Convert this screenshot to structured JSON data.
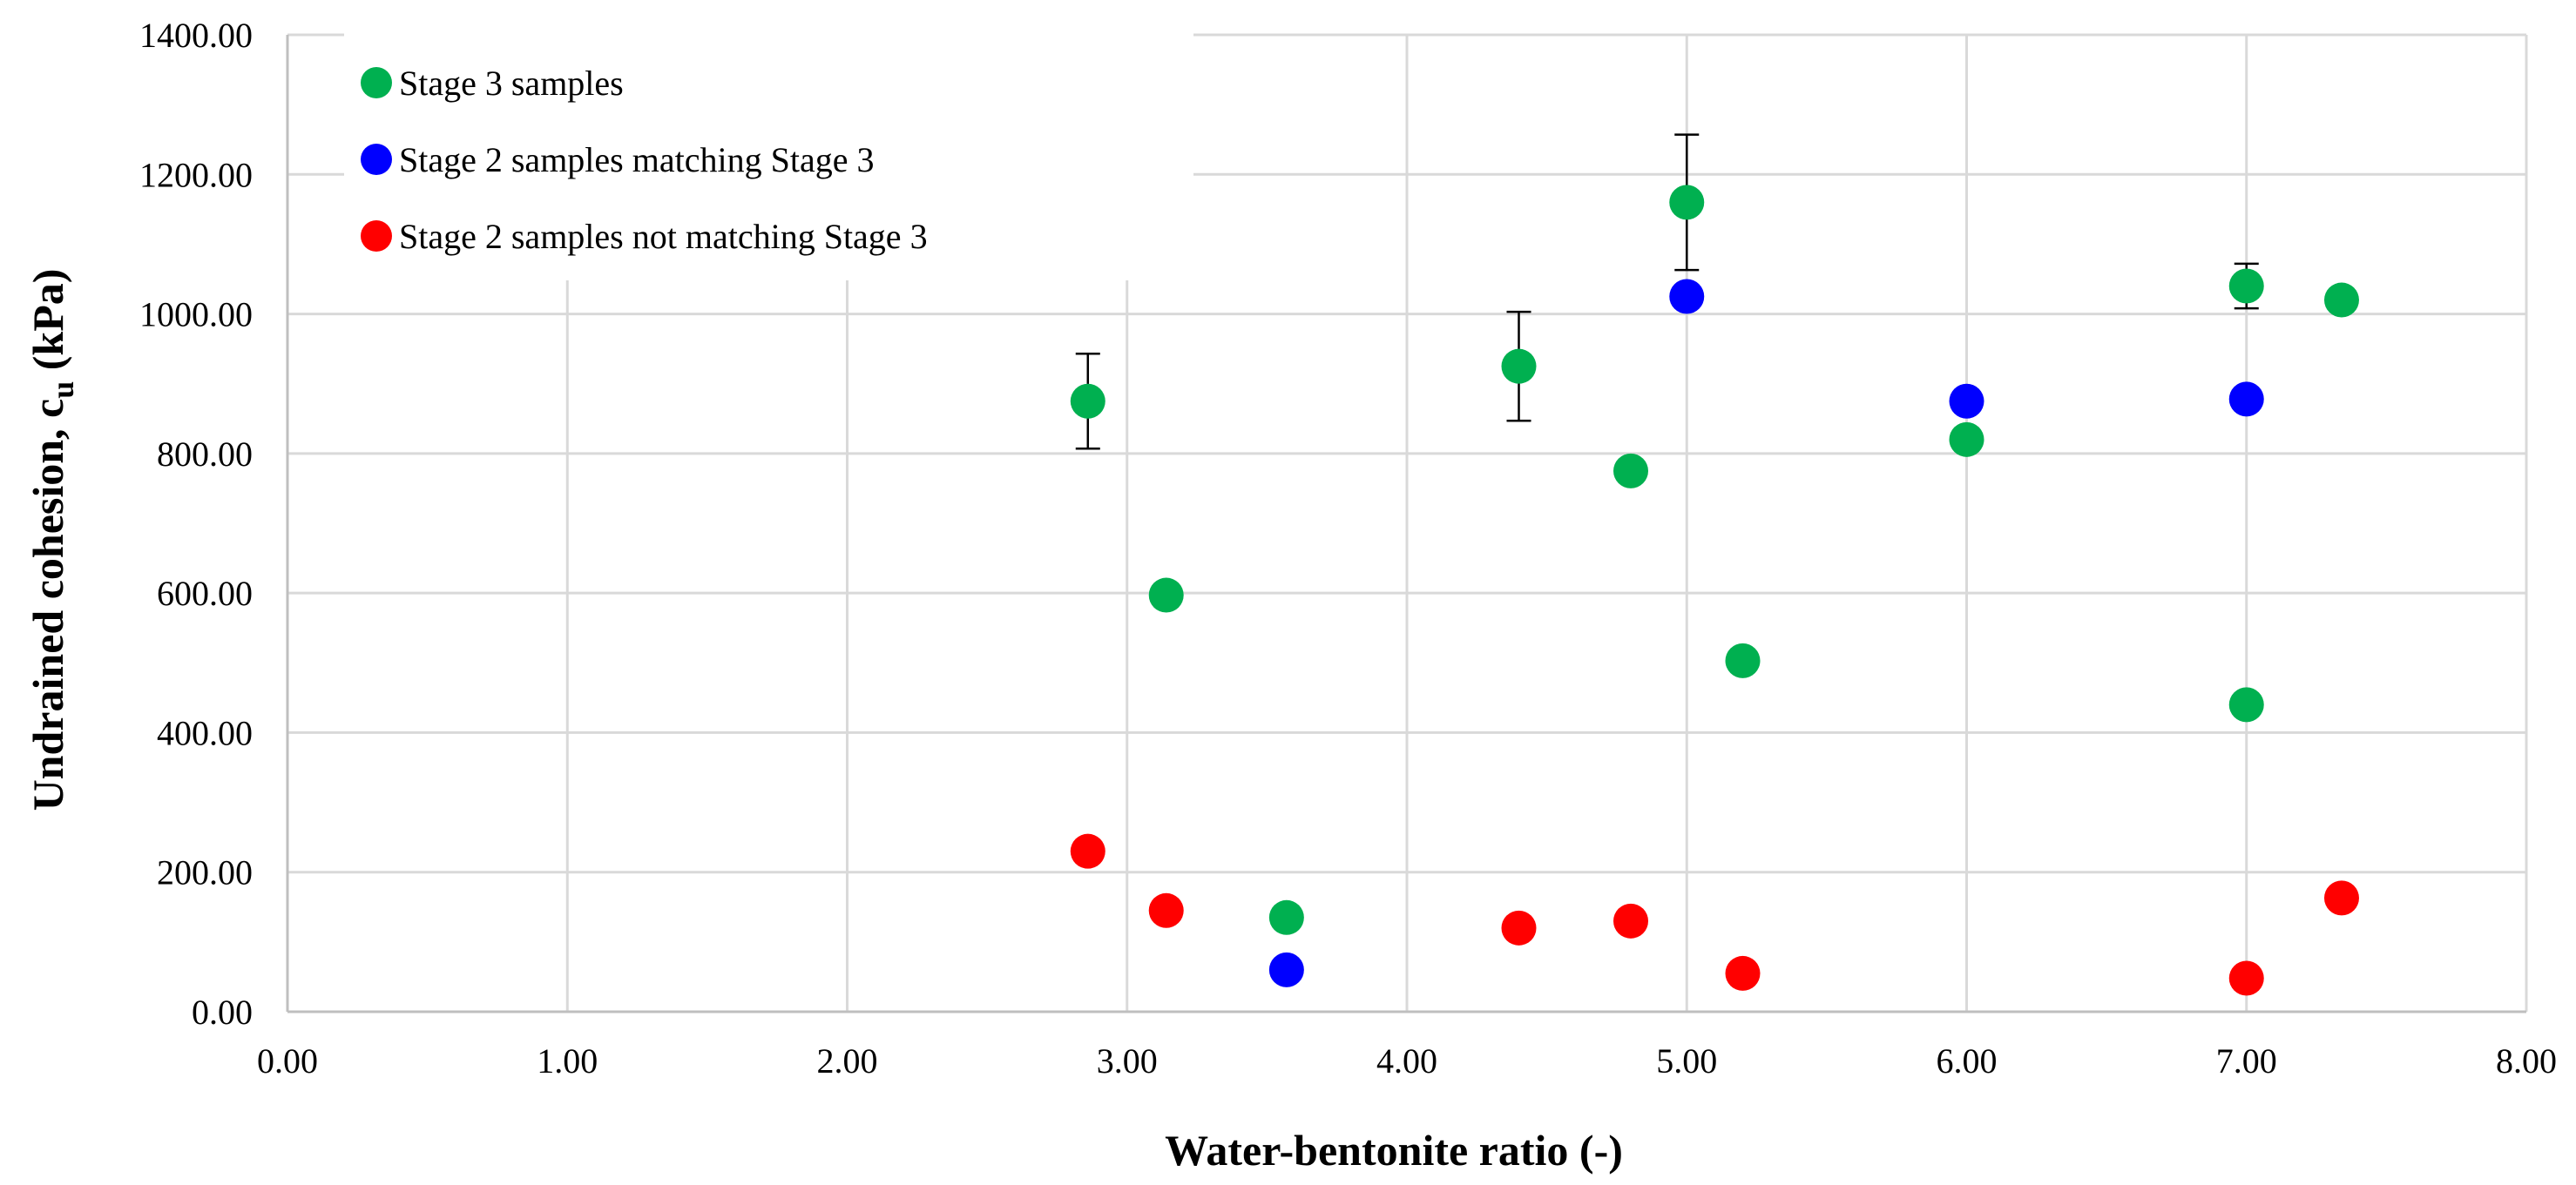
{
  "chart_data": {
    "type": "scatter",
    "title": "",
    "xlabel": "Water-bentonite ratio (-)",
    "ylabel_main": "Undrained cohesion, c",
    "ylabel_sub": "u",
    "ylabel_unit": " (kPa)",
    "xlim": [
      0,
      8
    ],
    "ylim": [
      0,
      1400
    ],
    "x_ticks": [
      0,
      1,
      2,
      3,
      4,
      5,
      6,
      7,
      8
    ],
    "y_ticks": [
      0,
      200,
      400,
      600,
      800,
      1000,
      1200,
      1400
    ],
    "x_tick_labels": [
      "0.00",
      "1.00",
      "2.00",
      "3.00",
      "4.00",
      "5.00",
      "6.00",
      "7.00",
      "8.00"
    ],
    "y_tick_labels": [
      "0.00",
      "200.00",
      "400.00",
      "600.00",
      "800.00",
      "1000.00",
      "1200.00",
      "1400.00"
    ],
    "grid": true,
    "legend_position": "top-left",
    "series": [
      {
        "name": "Stage 3 samples",
        "color": "#00b050",
        "points": [
          {
            "x": 2.86,
            "y": 875,
            "err": 68
          },
          {
            "x": 3.14,
            "y": 597
          },
          {
            "x": 3.57,
            "y": 135
          },
          {
            "x": 4.4,
            "y": 925,
            "err": 78
          },
          {
            "x": 4.8,
            "y": 775
          },
          {
            "x": 5.0,
            "y": 1160,
            "err": 97
          },
          {
            "x": 5.2,
            "y": 503
          },
          {
            "x": 6.0,
            "y": 820
          },
          {
            "x": 7.0,
            "y": 1040,
            "err": 32
          },
          {
            "x": 7.0,
            "y": 440
          },
          {
            "x": 7.34,
            "y": 1020
          }
        ]
      },
      {
        "name": "Stage 2 samples matching Stage 3",
        "color": "#0000ff",
        "points": [
          {
            "x": 3.57,
            "y": 60
          },
          {
            "x": 5.0,
            "y": 1025
          },
          {
            "x": 6.0,
            "y": 875
          },
          {
            "x": 7.0,
            "y": 878
          }
        ]
      },
      {
        "name": "Stage 2 samples not matching Stage 3",
        "color": "#ff0000",
        "points": [
          {
            "x": 2.86,
            "y": 230
          },
          {
            "x": 3.14,
            "y": 145
          },
          {
            "x": 4.4,
            "y": 120
          },
          {
            "x": 4.8,
            "y": 130
          },
          {
            "x": 5.2,
            "y": 55
          },
          {
            "x": 7.0,
            "y": 48
          },
          {
            "x": 7.34,
            "y": 163
          }
        ]
      }
    ]
  }
}
